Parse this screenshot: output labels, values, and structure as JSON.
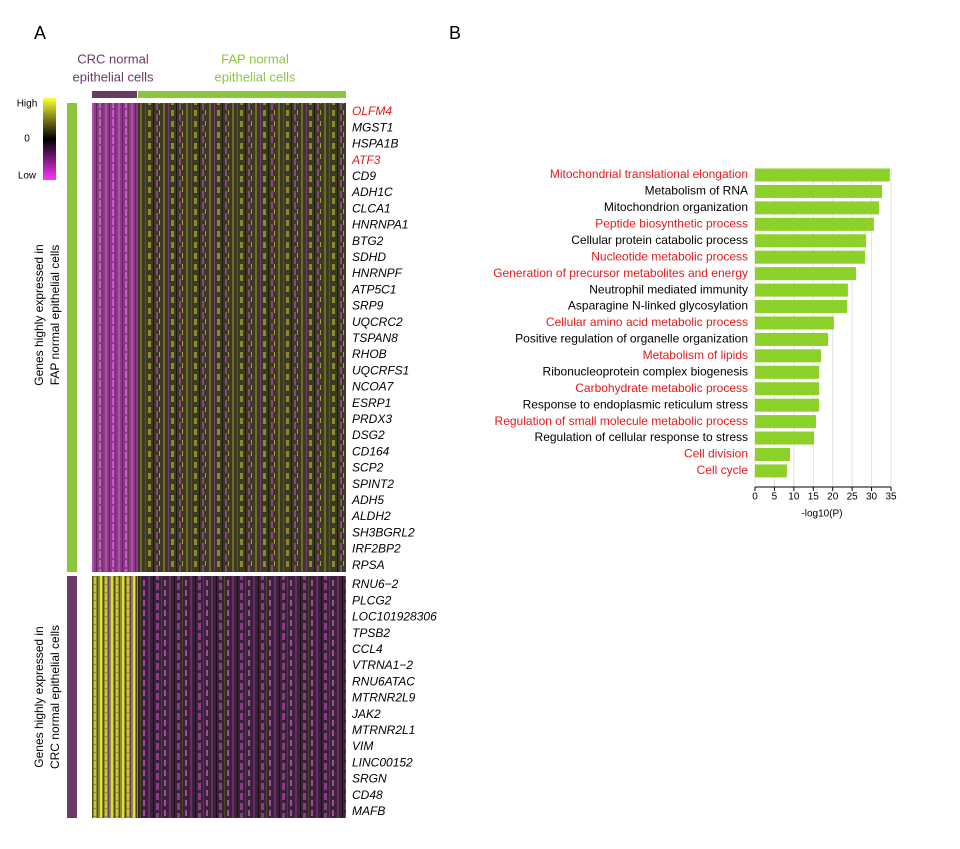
{
  "panel_a": {
    "label": "A",
    "group_labels": [
      [
        "CRC normal",
        "epithelial cells"
      ],
      [
        "FAP normal",
        "epithelial cells"
      ]
    ],
    "group_colors": [
      "#6b3a62",
      "#8cc63f"
    ],
    "legend": {
      "high": "High",
      "zero": "0",
      "low": "Low"
    },
    "row_group_labels": [
      [
        "Genes highly expressed in",
        "FAP normal epithelial cells"
      ],
      [
        "Genes highly expressed in",
        "CRC normal epithelial cells"
      ]
    ],
    "genes_fap": [
      "OLFM4",
      "MGST1",
      "HSPA1B",
      "ATF3",
      "CD9",
      "ADH1C",
      "CLCA1",
      "HNRNPA1",
      "BTG2",
      "SDHD",
      "HNRNPF",
      "ATP5C1",
      "SRP9",
      "UQCRC2",
      "TSPAN8",
      "RHOB",
      "UQCRFS1",
      "NCOA7",
      "ESRP1",
      "PRDX3",
      "DSG2",
      "CD164",
      "SCP2",
      "SPINT2",
      "ADH5",
      "ALDH2",
      "SH3BGRL2",
      "IRF2BP2",
      "RPSA"
    ],
    "genes_fap_colors": [
      "#e41a1c",
      "#000000",
      "#000000",
      "#e41a1c",
      "#000000",
      "#000000",
      "#000000",
      "#000000",
      "#000000",
      "#000000",
      "#000000",
      "#000000",
      "#000000",
      "#000000",
      "#000000",
      "#000000",
      "#000000",
      "#000000",
      "#000000",
      "#000000",
      "#000000",
      "#000000",
      "#000000",
      "#000000",
      "#000000",
      "#000000",
      "#000000",
      "#000000",
      "#000000"
    ],
    "genes_crc": [
      "RNU6−2",
      "PLCG2",
      "LOC101928306",
      "TPSB2",
      "CCL4",
      "VTRNA1−2",
      "RNU6ATAC",
      "MTRNR2L9",
      "JAK2",
      "MTRNR2L1",
      "VIM",
      "LINC00152",
      "SRGN",
      "CD48",
      "MAFB"
    ]
  },
  "chart_data": {
    "type": "bar",
    "orientation": "horizontal",
    "panel_label": "B",
    "categories": [
      "Mitochondrial translational elongation",
      "Metabolism of RNA",
      "Mitochondrion organization",
      "Peptide biosynthetic process",
      "Cellular protein catabolic process",
      "Nucleotide metabolic process",
      "Generation of precursor metabolites and energy",
      "Neutrophil mediated immunity",
      "Asparagine N-linked glycosylation",
      "Cellular amino acid metabolic process",
      "Positive regulation of organelle organization",
      "Metabolism of lipids",
      "Ribonucleoprotein complex biogenesis",
      "Carbohydrate metabolic process",
      "Response to endoplasmic reticulum stress",
      "Regulation of small molecule metabolic process",
      "Regulation of cellular response to stress",
      "Cell division",
      "Cell cycle"
    ],
    "category_colors": [
      "#e41a1c",
      "#000000",
      "#000000",
      "#e41a1c",
      "#000000",
      "#e41a1c",
      "#e41a1c",
      "#000000",
      "#000000",
      "#e41a1c",
      "#000000",
      "#e41a1c",
      "#000000",
      "#e41a1c",
      "#000000",
      "#e41a1c",
      "#000000",
      "#e41a1c",
      "#e41a1c"
    ],
    "values": [
      34.7,
      32.7,
      31.9,
      30.6,
      28.6,
      28.3,
      26.0,
      23.9,
      23.7,
      20.3,
      18.8,
      17.0,
      16.5,
      16.5,
      16.5,
      15.7,
      15.2,
      9.0,
      8.2
    ],
    "color": "#8cd12a",
    "xlabel": "-log10(P)",
    "xlim": [
      0,
      35
    ],
    "xticks": [
      0,
      5,
      10,
      15,
      20,
      25,
      30,
      35
    ],
    "grid": true
  }
}
